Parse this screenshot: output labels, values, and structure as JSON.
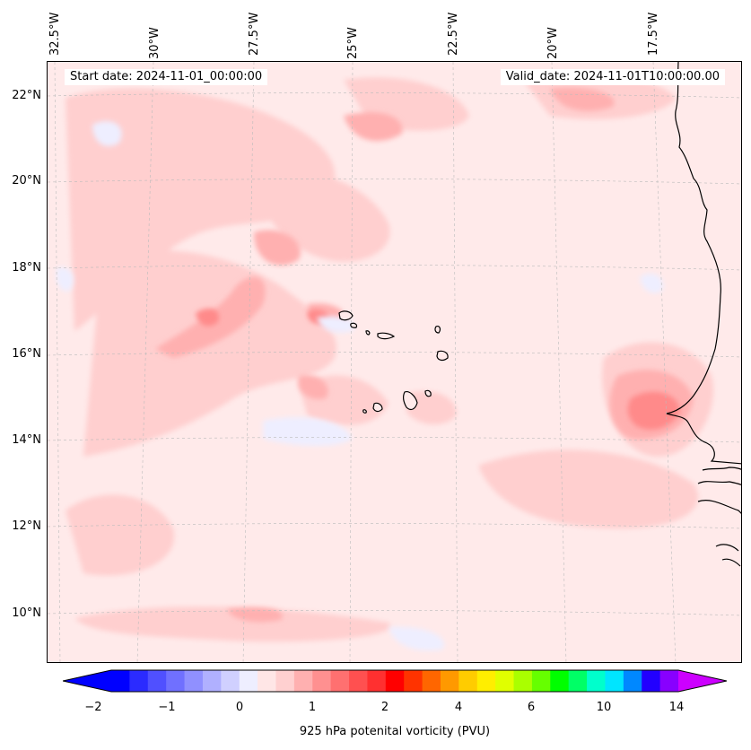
{
  "map": {
    "start_date_label": "Start date: 2024-11-01_00:00:00",
    "valid_date_label": "Valid_date: 2024-11-01T10:00:00.00",
    "lon_labels": [
      "32.5°W",
      "30°W",
      "27.5°W",
      "25°W",
      "22.5°W",
      "20°W",
      "17.5°W"
    ],
    "lat_labels": [
      "22°N",
      "20°N",
      "18°N",
      "16°N",
      "14°N",
      "12°N",
      "10°N"
    ],
    "background_color": "#ffeaea",
    "coastline_color": "#000000"
  },
  "colorbar": {
    "title": "925 hPa potenital vorticity (PVU)",
    "tick_labels": [
      "−2",
      "−1",
      "0",
      "1",
      "2",
      "4",
      "6",
      "10",
      "14"
    ],
    "colors": [
      "#0000ff",
      "#2b2bff",
      "#5050ff",
      "#7070ff",
      "#9090ff",
      "#b0b0ff",
      "#d0d0ff",
      "#eeeeff",
      "#ffe6e6",
      "#ffd0d0",
      "#ffb0b0",
      "#ff9090",
      "#ff7070",
      "#ff5050",
      "#ff3030",
      "#ff0000",
      "#ff3300",
      "#ff6600",
      "#ff9900",
      "#ffcc00",
      "#ffee00",
      "#e0ff00",
      "#aaff00",
      "#66ff00",
      "#00ff00",
      "#00ff66",
      "#00ffcc",
      "#00e5ff",
      "#0088ff",
      "#2200ff",
      "#8800ff"
    ],
    "under_color": "#0000ff",
    "over_color": "#cc00ff"
  }
}
